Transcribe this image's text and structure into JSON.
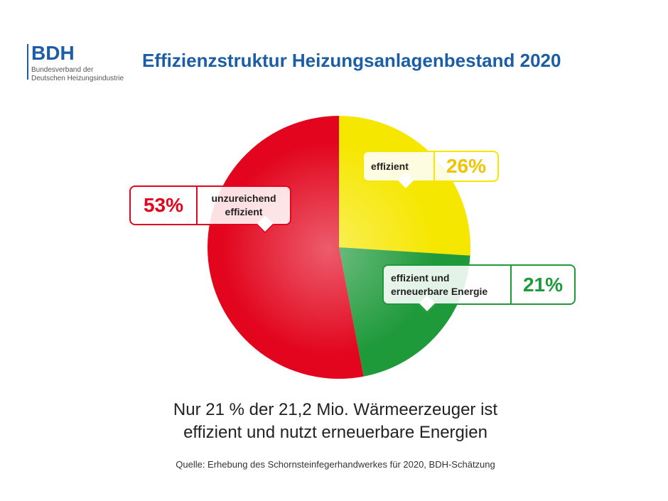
{
  "logo": {
    "name": "BDH",
    "lines": [
      "Bundesverband der",
      "Deutschen Heizungsindustrie"
    ]
  },
  "chart_data": {
    "type": "pie",
    "title": "Effizienzstruktur Heizungsanlagenbestand 2020",
    "categories": [
      "effizient",
      "effizient und erneuerbare Energie",
      "unzureichend effizient"
    ],
    "values": [
      26,
      21,
      53
    ],
    "value_labels": [
      "26%",
      "21%",
      "53%"
    ],
    "colors": [
      "#f6e700",
      "#1f9a3b",
      "#e2051d"
    ],
    "subtitle": [
      "Nur 21 % der 21,2 Mio. Wärmeerzeuger ist",
      "effizient und nutzt erneuerbare Energien"
    ],
    "source": "Quelle: Erhebung des Schornsteinfegerhandwerkes für 2020, BDH-Schätzung"
  }
}
